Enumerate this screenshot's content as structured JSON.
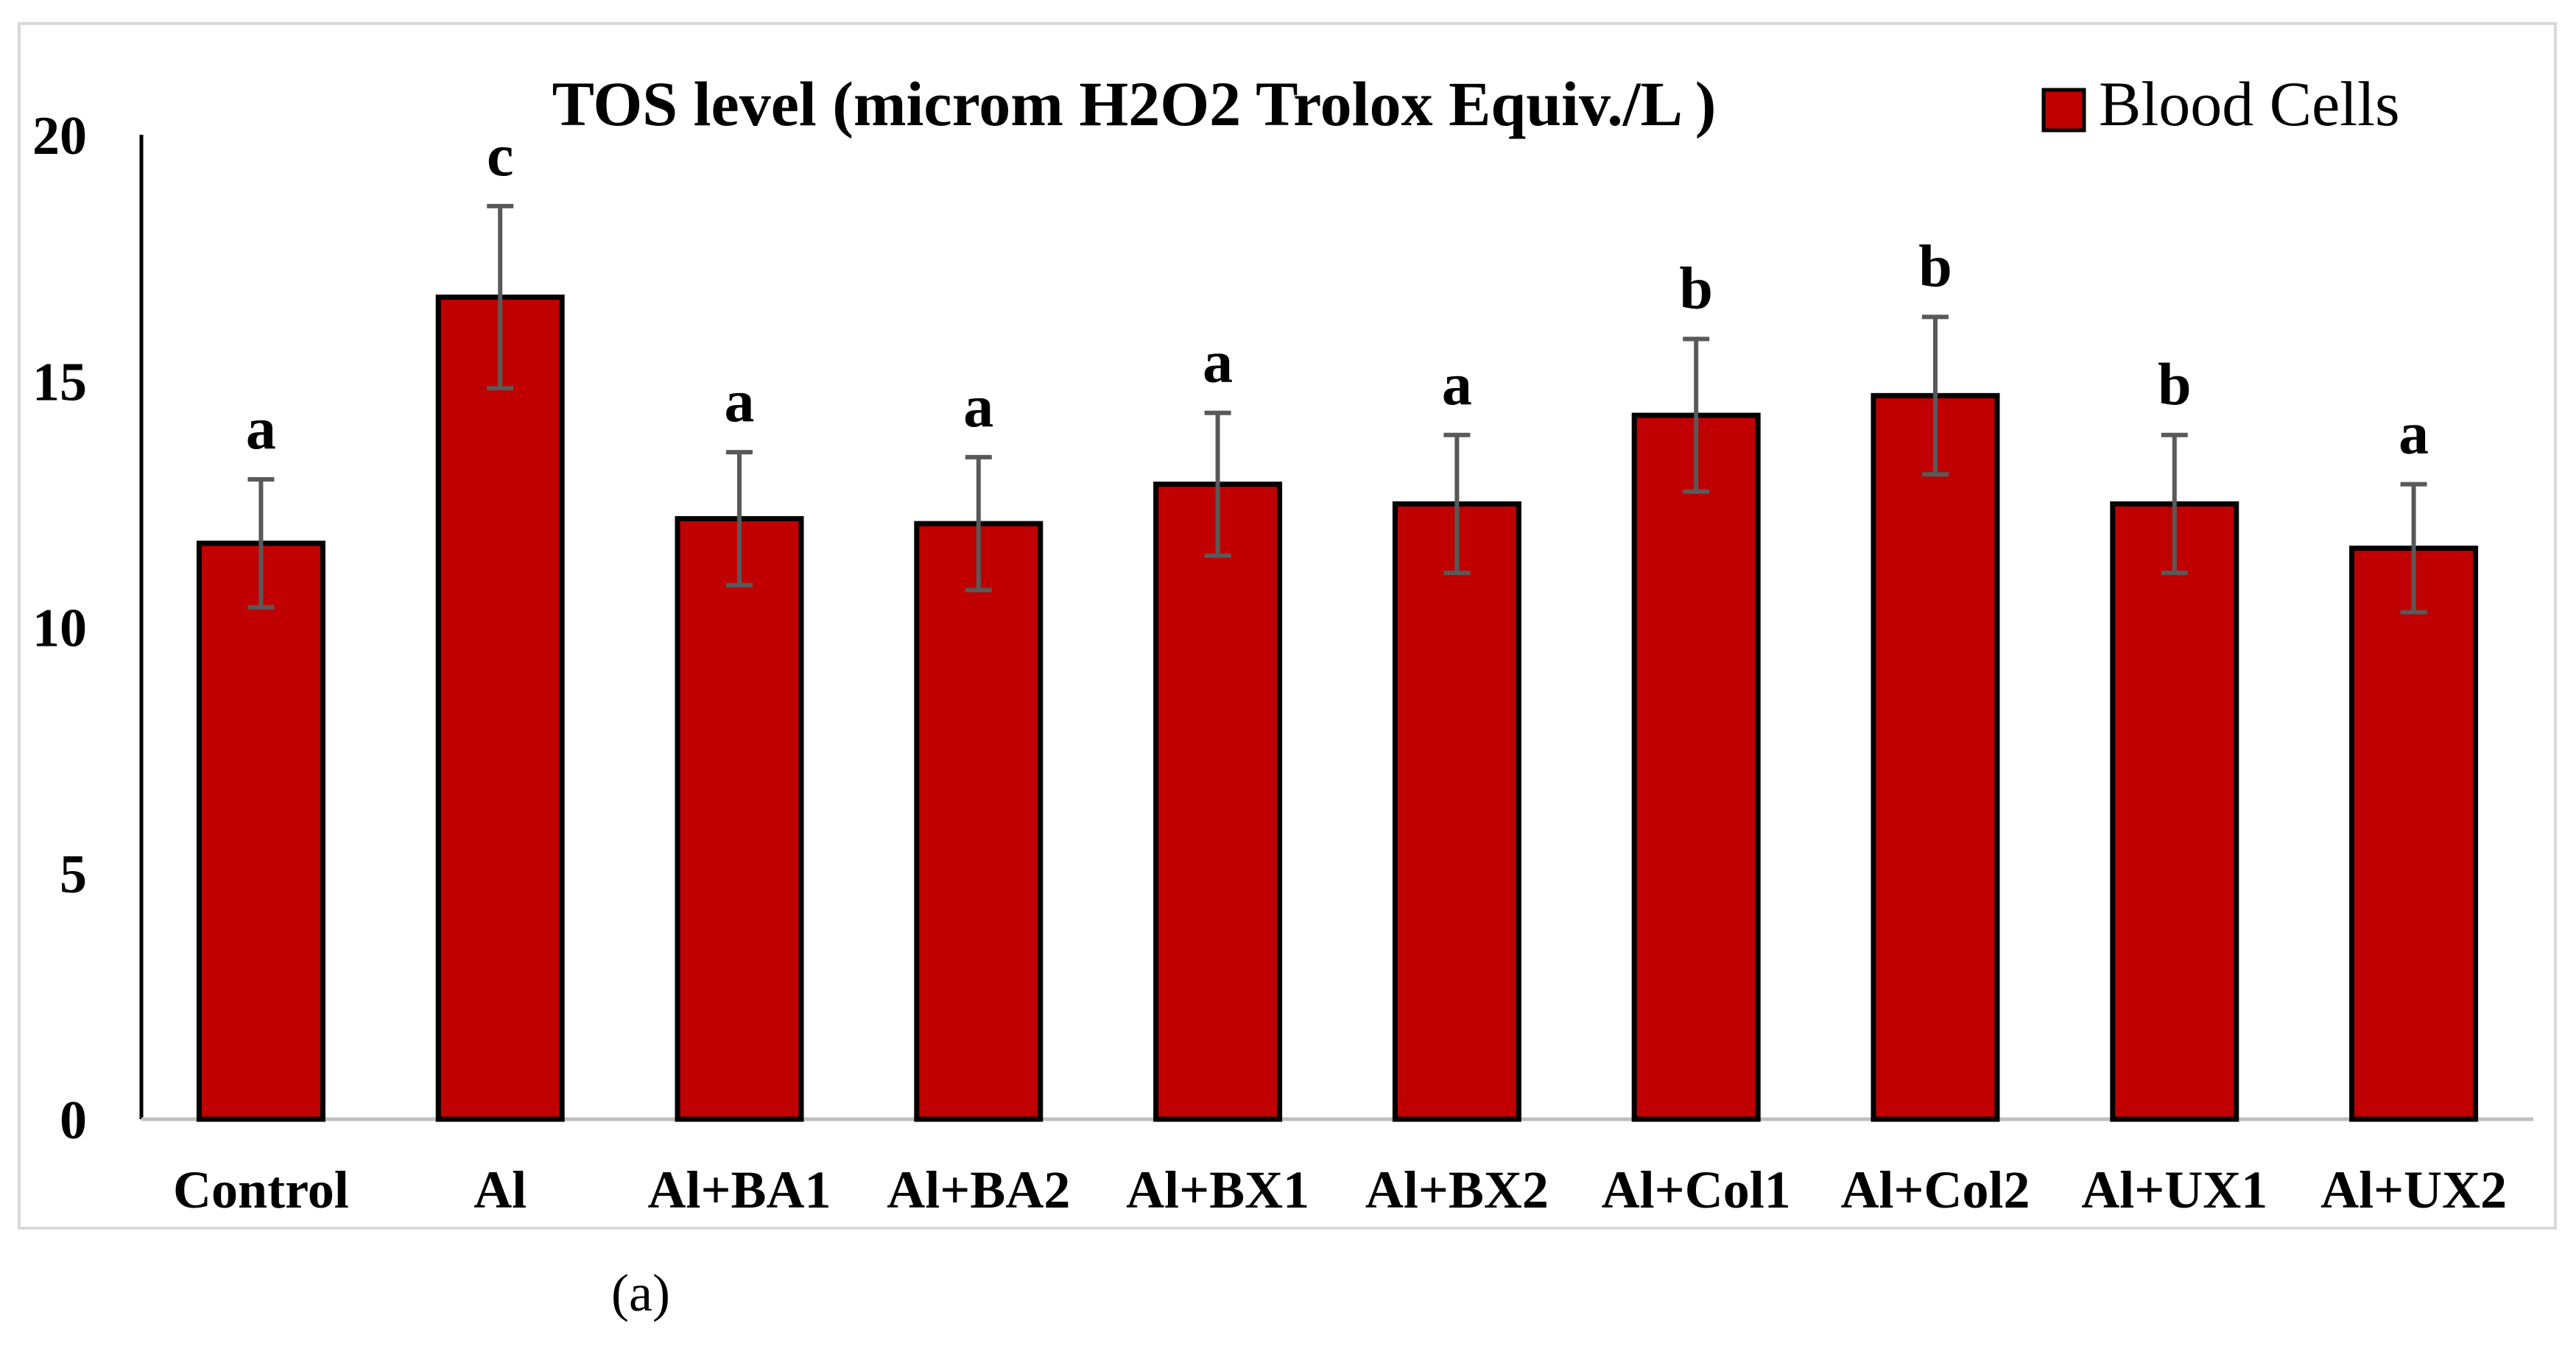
{
  "chart_data": {
    "type": "bar",
    "title": "TOS level (microm H2O2 Trolox Equiv./L )",
    "categories": [
      "Control",
      "Al",
      "Al+BA1",
      "Al+BA2",
      "Al+BX1",
      "Al+BX2",
      "Al+Col1",
      "Al+Col2",
      "Al+UX1",
      "Al+UX2"
    ],
    "series": [
      {
        "name": "Blood Cells",
        "values": [
          11.7,
          16.7,
          12.2,
          12.1,
          12.9,
          12.5,
          14.3,
          14.7,
          12.5,
          11.6
        ],
        "errors": [
          1.3,
          1.85,
          1.35,
          1.35,
          1.45,
          1.4,
          1.55,
          1.6,
          1.4,
          1.3
        ],
        "significance": [
          "a",
          "c",
          "a",
          "a",
          "a",
          "a",
          "b",
          "b",
          "b",
          "a"
        ],
        "color": "#c00000"
      }
    ],
    "yticks": [
      0,
      5,
      10,
      15,
      20
    ],
    "ylim": [
      0,
      20
    ],
    "xlabel": "",
    "ylabel": "",
    "grid": false,
    "legend": "top-right"
  },
  "caption": "(a)"
}
